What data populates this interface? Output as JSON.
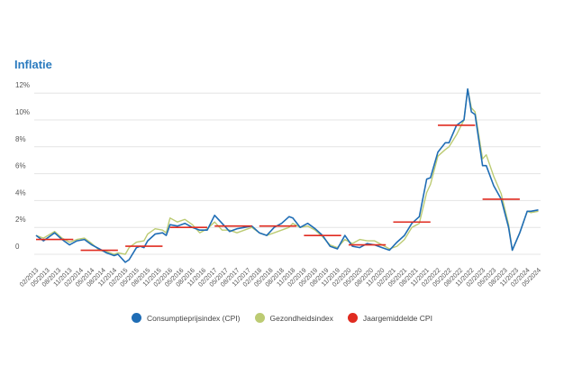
{
  "title": "Inflatie",
  "chart_data": {
    "type": "line",
    "title": "Inflatie",
    "xlabel": "",
    "ylabel": "",
    "ylim": [
      -1,
      12.5
    ],
    "y_ticks": [
      0,
      2,
      4,
      6,
      8,
      10,
      12
    ],
    "y_tick_labels": [
      "0",
      "2%",
      "4%",
      "6%",
      "8%",
      "10%",
      "12%"
    ],
    "grid": true,
    "legend_position": "bottom",
    "x_ticks": [
      "02/2013",
      "05/2013",
      "08/2013",
      "11/2013",
      "02/2014",
      "05/2014",
      "08/2014",
      "11/2014",
      "02/2015",
      "05/2015",
      "08/2015",
      "11/2015",
      "02/2016",
      "05/2016",
      "08/2016",
      "11/2016",
      "02/2017",
      "05/2017",
      "08/2017",
      "11/2017",
      "02/2018",
      "05/2018",
      "08/2018",
      "11/2018",
      "02/2019",
      "05/2019",
      "08/2019",
      "11/2019",
      "02/2020",
      "05/2020",
      "08/2020",
      "11/2020",
      "02/2021",
      "05/2021",
      "08/2021",
      "11/2021",
      "02/2022",
      "05/2022",
      "08/2022",
      "11/2022",
      "02/2023",
      "05/2023",
      "08/2023",
      "11/2023",
      "02/2024",
      "05/2024"
    ],
    "series": [
      {
        "name": "Consumptieprijsindex (CPI)",
        "color": "#1f6db5",
        "points": [
          [
            "2013-02",
            1.4
          ],
          [
            "2013-04",
            1.0
          ],
          [
            "2013-07",
            1.6
          ],
          [
            "2013-09",
            1.1
          ],
          [
            "2013-11",
            0.7
          ],
          [
            "2014-01",
            1.0
          ],
          [
            "2014-03",
            1.1
          ],
          [
            "2014-05",
            0.7
          ],
          [
            "2014-07",
            0.4
          ],
          [
            "2014-09",
            0.1
          ],
          [
            "2014-11",
            -0.1
          ],
          [
            "2014-12",
            0.0
          ],
          [
            "2015-02",
            -0.6
          ],
          [
            "2015-03",
            -0.4
          ],
          [
            "2015-05",
            0.5
          ],
          [
            "2015-06",
            0.6
          ],
          [
            "2015-07",
            0.5
          ],
          [
            "2015-08",
            1.0
          ],
          [
            "2015-10",
            1.5
          ],
          [
            "2015-12",
            1.6
          ],
          [
            "2016-01",
            1.4
          ],
          [
            "2016-02",
            2.2
          ],
          [
            "2016-04",
            2.1
          ],
          [
            "2016-06",
            2.3
          ],
          [
            "2016-08",
            2.0
          ],
          [
            "2016-10",
            1.8
          ],
          [
            "2016-12",
            1.8
          ],
          [
            "2017-02",
            2.9
          ],
          [
            "2017-04",
            2.3
          ],
          [
            "2017-06",
            1.7
          ],
          [
            "2017-08",
            1.9
          ],
          [
            "2017-10",
            2.0
          ],
          [
            "2017-12",
            2.1
          ],
          [
            "2018-02",
            1.6
          ],
          [
            "2018-04",
            1.4
          ],
          [
            "2018-06",
            2.0
          ],
          [
            "2018-08",
            2.3
          ],
          [
            "2018-10",
            2.8
          ],
          [
            "2018-11",
            2.7
          ],
          [
            "2019-01",
            2.0
          ],
          [
            "2019-03",
            2.3
          ],
          [
            "2019-05",
            1.9
          ],
          [
            "2019-07",
            1.4
          ],
          [
            "2019-09",
            0.6
          ],
          [
            "2019-11",
            0.4
          ],
          [
            "2020-01",
            1.4
          ],
          [
            "2020-03",
            0.6
          ],
          [
            "2020-05",
            0.5
          ],
          [
            "2020-07",
            0.8
          ],
          [
            "2020-09",
            0.7
          ],
          [
            "2020-11",
            0.5
          ],
          [
            "2021-01",
            0.3
          ],
          [
            "2021-03",
            0.9
          ],
          [
            "2021-05",
            1.4
          ],
          [
            "2021-07",
            2.3
          ],
          [
            "2021-09",
            2.8
          ],
          [
            "2021-11",
            5.6
          ],
          [
            "2021-12",
            5.7
          ],
          [
            "2022-02",
            7.6
          ],
          [
            "2022-04",
            8.3
          ],
          [
            "2022-05",
            8.3
          ],
          [
            "2022-07",
            9.6
          ],
          [
            "2022-09",
            10.0
          ],
          [
            "2022-10",
            12.3
          ],
          [
            "2022-11",
            10.6
          ],
          [
            "2022-12",
            10.4
          ],
          [
            "2023-02",
            6.6
          ],
          [
            "2023-03",
            6.6
          ],
          [
            "2023-05",
            5.1
          ],
          [
            "2023-07",
            4.1
          ],
          [
            "2023-09",
            2.0
          ],
          [
            "2023-10",
            0.3
          ],
          [
            "2023-12",
            1.6
          ],
          [
            "2024-02",
            3.2
          ],
          [
            "2024-03",
            3.2
          ],
          [
            "2024-05",
            3.3
          ]
        ]
      },
      {
        "name": "Gezondheidsindex",
        "color": "#bccb73",
        "points": [
          [
            "2013-02",
            1.4
          ],
          [
            "2013-04",
            1.2
          ],
          [
            "2013-07",
            1.7
          ],
          [
            "2013-09",
            1.2
          ],
          [
            "2013-11",
            0.9
          ],
          [
            "2014-01",
            1.1
          ],
          [
            "2014-03",
            1.2
          ],
          [
            "2014-05",
            0.8
          ],
          [
            "2014-07",
            0.3
          ],
          [
            "2014-09",
            0.2
          ],
          [
            "2014-11",
            0.0
          ],
          [
            "2014-12",
            0.1
          ],
          [
            "2015-02",
            0.0
          ],
          [
            "2015-03",
            0.5
          ],
          [
            "2015-05",
            0.9
          ],
          [
            "2015-07",
            1.0
          ],
          [
            "2015-08",
            1.5
          ],
          [
            "2015-10",
            1.9
          ],
          [
            "2015-12",
            1.8
          ],
          [
            "2016-01",
            1.6
          ],
          [
            "2016-02",
            2.7
          ],
          [
            "2016-04",
            2.4
          ],
          [
            "2016-06",
            2.6
          ],
          [
            "2016-08",
            2.2
          ],
          [
            "2016-10",
            1.6
          ],
          [
            "2016-12",
            1.9
          ],
          [
            "2017-02",
            2.4
          ],
          [
            "2017-04",
            1.8
          ],
          [
            "2017-06",
            1.8
          ],
          [
            "2017-08",
            1.6
          ],
          [
            "2017-10",
            1.8
          ],
          [
            "2017-12",
            2.0
          ],
          [
            "2018-02",
            1.6
          ],
          [
            "2018-04",
            1.4
          ],
          [
            "2018-06",
            1.6
          ],
          [
            "2018-08",
            1.8
          ],
          [
            "2018-10",
            2.0
          ],
          [
            "2018-11",
            2.3
          ],
          [
            "2019-01",
            2.0
          ],
          [
            "2019-03",
            2.1
          ],
          [
            "2019-05",
            1.8
          ],
          [
            "2019-07",
            1.3
          ],
          [
            "2019-09",
            0.7
          ],
          [
            "2019-11",
            0.5
          ],
          [
            "2020-01",
            1.1
          ],
          [
            "2020-03",
            0.8
          ],
          [
            "2020-05",
            1.1
          ],
          [
            "2020-07",
            1.0
          ],
          [
            "2020-09",
            1.0
          ],
          [
            "2020-11",
            0.7
          ],
          [
            "2021-01",
            0.4
          ],
          [
            "2021-03",
            0.6
          ],
          [
            "2021-05",
            1.1
          ],
          [
            "2021-07",
            2.0
          ],
          [
            "2021-09",
            2.3
          ],
          [
            "2021-11",
            4.6
          ],
          [
            "2021-12",
            5.2
          ],
          [
            "2022-02",
            7.3
          ],
          [
            "2022-04",
            7.8
          ],
          [
            "2022-05",
            8.0
          ],
          [
            "2022-07",
            8.9
          ],
          [
            "2022-09",
            10.0
          ],
          [
            "2022-10",
            12.3
          ],
          [
            "2022-11",
            10.9
          ],
          [
            "2022-12",
            10.6
          ],
          [
            "2023-02",
            7.1
          ],
          [
            "2023-03",
            7.4
          ],
          [
            "2023-05",
            5.8
          ],
          [
            "2023-07",
            4.5
          ],
          [
            "2023-09",
            2.2
          ],
          [
            "2023-10",
            0.3
          ],
          [
            "2023-12",
            1.6
          ],
          [
            "2024-02",
            3.2
          ],
          [
            "2024-03",
            3.1
          ],
          [
            "2024-05",
            3.2
          ]
        ]
      }
    ],
    "annual_average": {
      "name": "Jaargemiddelde CPI",
      "color": "#e02b20",
      "values": [
        [
          2013,
          1.1
        ],
        [
          2014,
          0.3
        ],
        [
          2015,
          0.6
        ],
        [
          2016,
          2.0
        ],
        [
          2017,
          2.1
        ],
        [
          2018,
          2.1
        ],
        [
          2019,
          1.4
        ],
        [
          2020,
          0.7
        ],
        [
          2021,
          2.4
        ],
        [
          2022,
          9.6
        ],
        [
          2023,
          4.1
        ]
      ]
    }
  }
}
